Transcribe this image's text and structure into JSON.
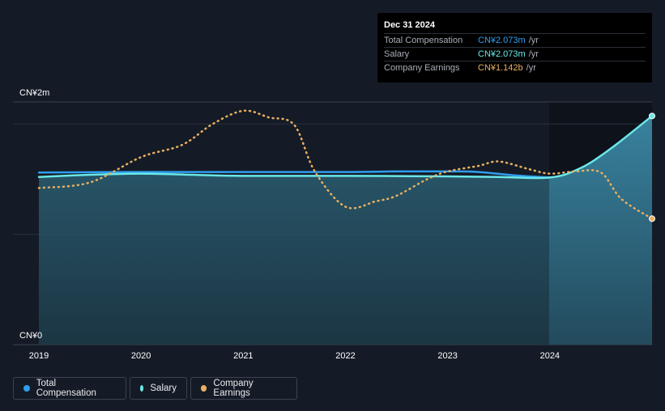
{
  "tooltip": {
    "date": "Dec 31 2024",
    "rows": [
      {
        "label": "Total Compensation",
        "value": "CN¥2.073m",
        "unit": "/yr",
        "color": "#2e9ef0"
      },
      {
        "label": "Salary",
        "value": "CN¥2.073m",
        "unit": "/yr",
        "color": "#6ae8e8"
      },
      {
        "label": "Company Earnings",
        "value": "CN¥1.142b",
        "unit": "/yr",
        "color": "#e8b060"
      }
    ]
  },
  "legend": [
    {
      "label": "Total Compensation",
      "color": "#2e9ef0"
    },
    {
      "label": "Salary",
      "color": "#6ae8e8"
    },
    {
      "label": "Company Earnings",
      "color": "#e8b060"
    }
  ],
  "chart_data": {
    "type": "line",
    "y_top_label": "CN¥2m",
    "y_bottom_label": "CN¥0",
    "x_tick_labels": [
      "2019",
      "2020",
      "2021",
      "2022",
      "2023",
      "2024"
    ],
    "xlim": [
      2019.0,
      2025.0
    ],
    "ylim": [
      0,
      2.2
    ],
    "grid": true,
    "legend_position": "bottom-left",
    "series": [
      {
        "name": "Total Compensation",
        "unit": "CN¥m",
        "color": "#2e9ef0",
        "x": [
          2019.0,
          2020.0,
          2021.0,
          2022.0,
          2022.5,
          2023.0,
          2023.3,
          2023.65,
          2024.0
        ],
        "y": [
          1.56,
          1.565,
          1.565,
          1.565,
          1.57,
          1.57,
          1.565,
          1.535,
          1.515
        ]
      },
      {
        "name": "Salary",
        "unit": "CN¥m",
        "color": "#6ae8e8",
        "x": [
          2019.0,
          2019.5,
          2020.0,
          2020.5,
          2021.0,
          2022.0,
          2023.0,
          2023.5,
          2024.0,
          2024.3,
          2024.6,
          2025.0
        ],
        "y": [
          1.52,
          1.54,
          1.55,
          1.54,
          1.53,
          1.53,
          1.525,
          1.52,
          1.515,
          1.6,
          1.78,
          2.073
        ]
      },
      {
        "name": "Company Earnings",
        "unit": "CN¥b",
        "color": "#e8b060",
        "x": [
          2019.0,
          2019.5,
          2020.0,
          2020.4,
          2020.7,
          2021.0,
          2021.25,
          2021.5,
          2021.7,
          2022.0,
          2022.3,
          2022.5,
          2022.8,
          2023.0,
          2023.3,
          2023.5,
          2023.8,
          2024.0,
          2024.25,
          2024.5,
          2024.7,
          2025.0
        ],
        "y": [
          1.42,
          1.47,
          1.7,
          1.81,
          2.0,
          2.12,
          2.06,
          1.99,
          1.57,
          1.25,
          1.3,
          1.35,
          1.5,
          1.57,
          1.62,
          1.66,
          1.59,
          1.55,
          1.57,
          1.56,
          1.32,
          1.142
        ]
      }
    ]
  }
}
